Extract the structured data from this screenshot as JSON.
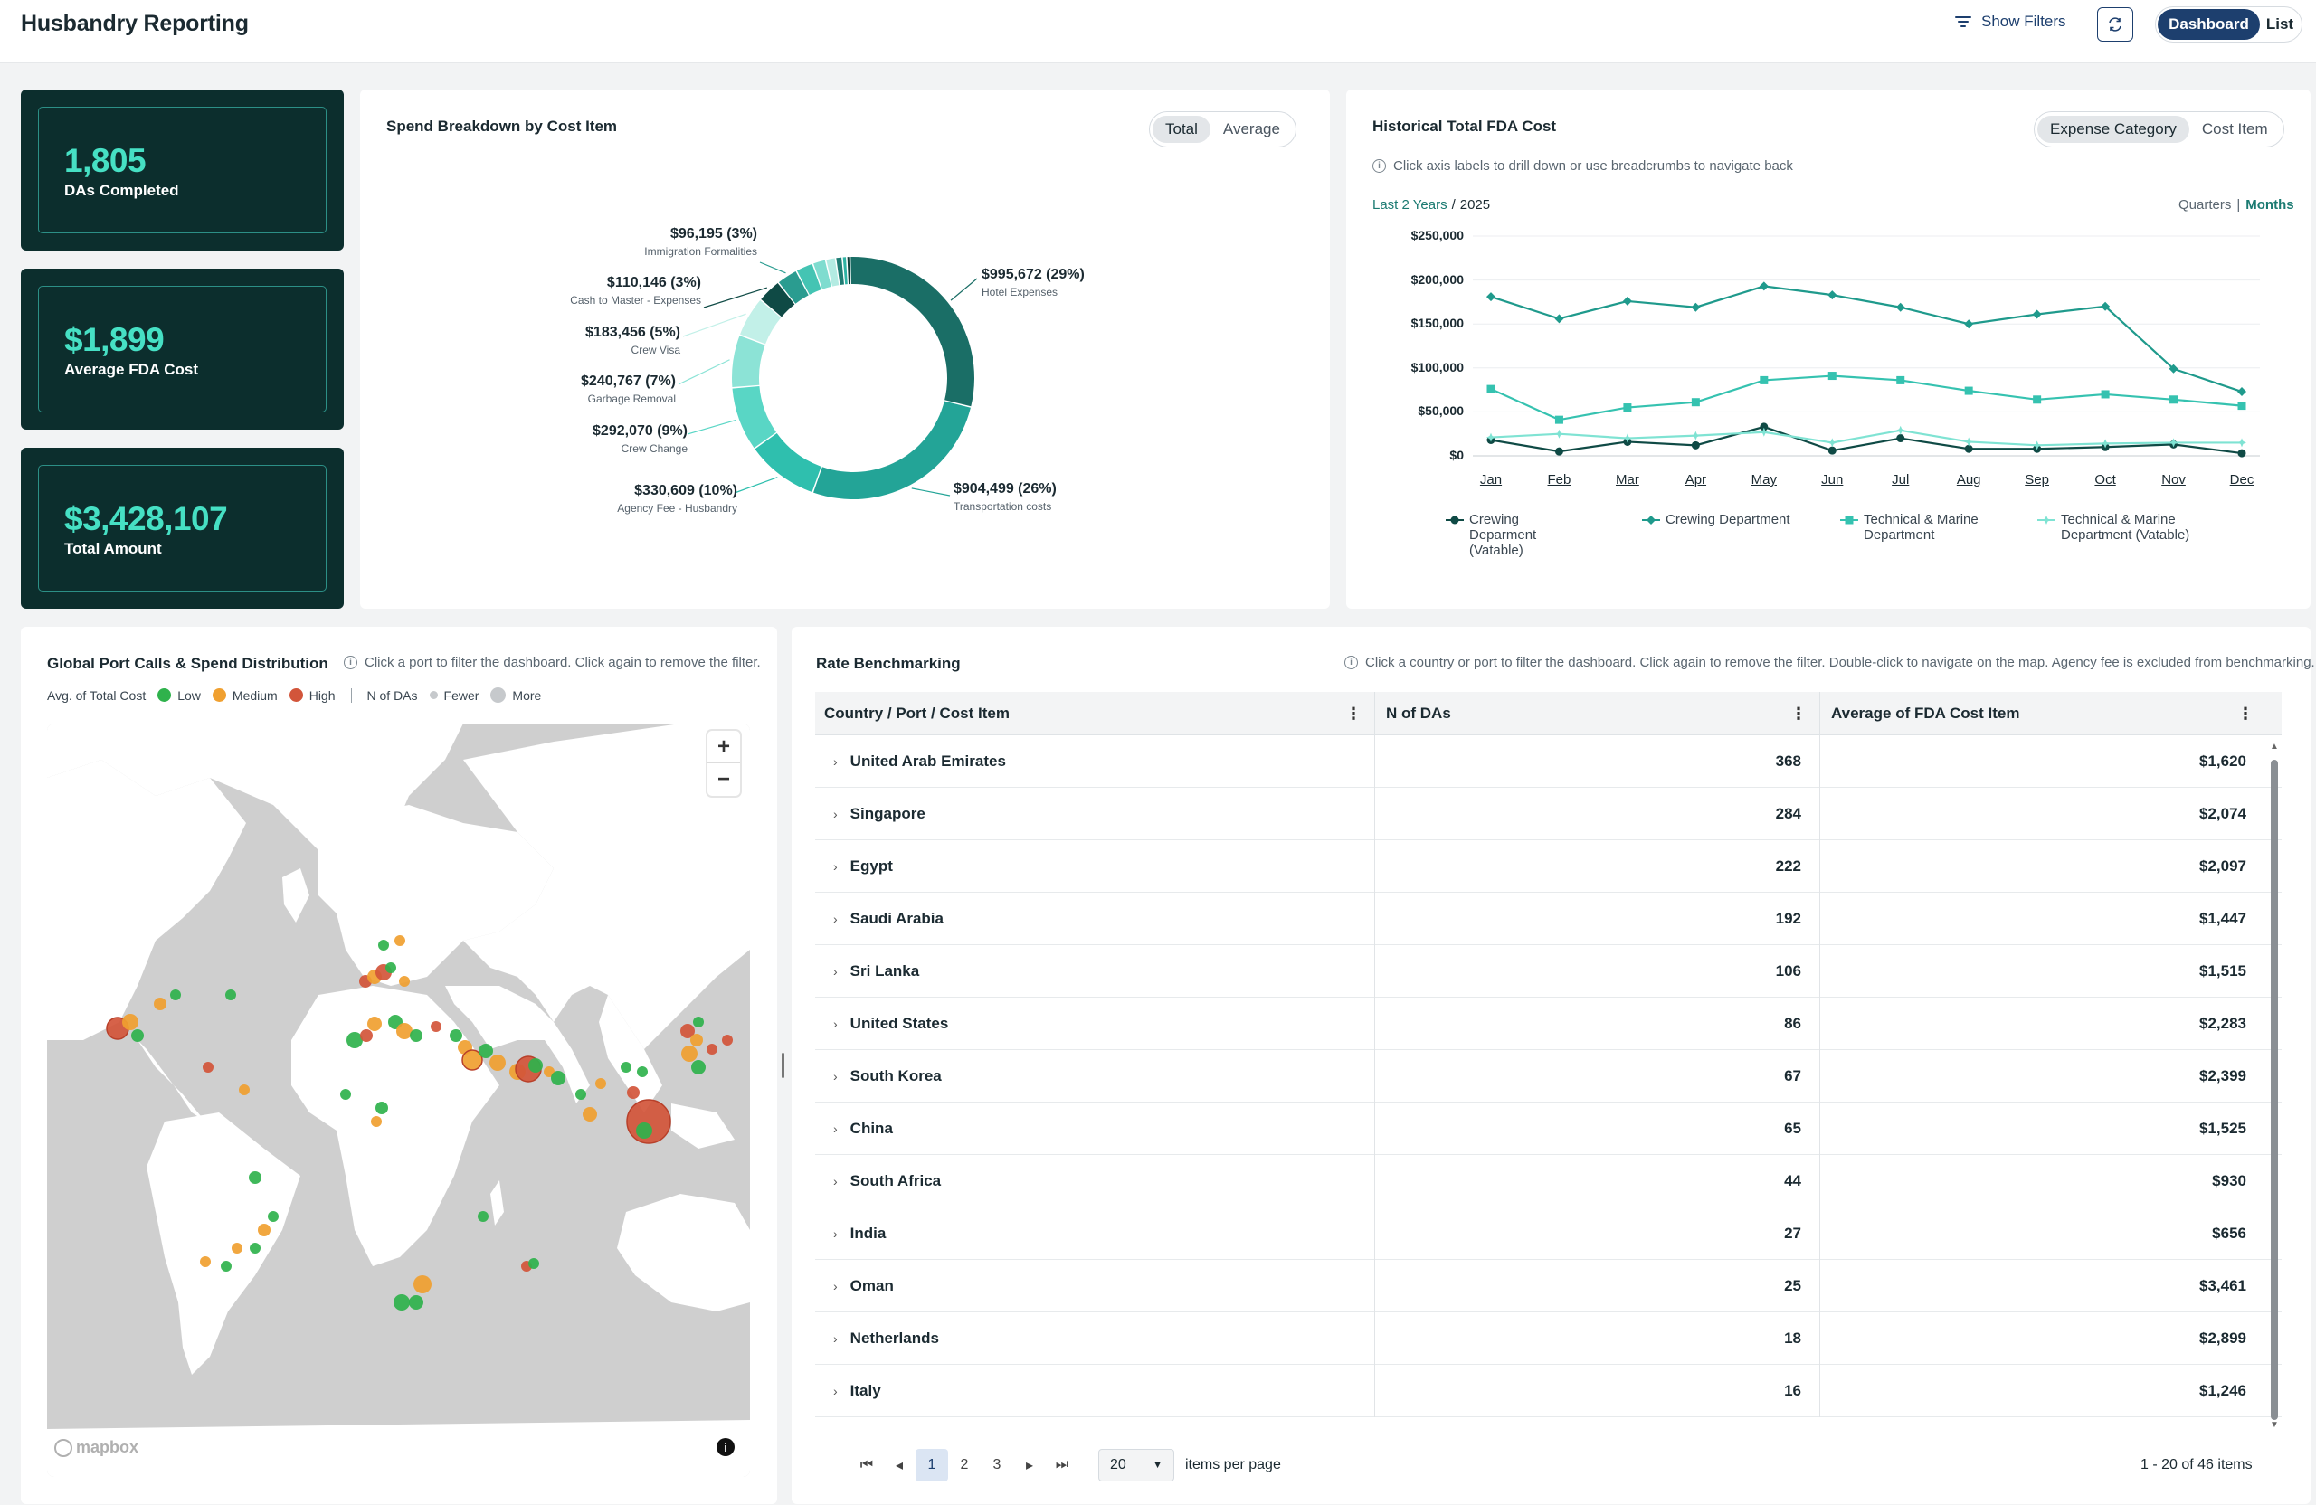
{
  "header": {
    "title": "Husbandry Reporting",
    "show_filters": "Show Filters",
    "view_options": [
      "Dashboard",
      "List"
    ]
  },
  "kpis": [
    {
      "value": "1,805",
      "label": "DAs Completed"
    },
    {
      "value": "$1,899",
      "label": "Average FDA Cost"
    },
    {
      "value": "$3,428,107",
      "label": "Total Amount"
    }
  ],
  "spend": {
    "title": "Spend Breakdown by Cost Item",
    "toggle": [
      "Total",
      "Average"
    ],
    "selected": "Total",
    "chart_data": {
      "type": "pie",
      "donut": true,
      "slices": [
        {
          "label": "Hotel Expenses",
          "value": 995672,
          "value_text": "$995,672 (29%)",
          "color": "#1a6e66"
        },
        {
          "label": "Transportation costs",
          "value": 904499,
          "value_text": "$904,499 (26%)",
          "color": "#23a497"
        },
        {
          "label": "Agency Fee - Husbandry",
          "value": 330609,
          "value_text": "$330,609 (10%)",
          "color": "#2fbfae"
        },
        {
          "label": "Crew Change",
          "value": 292070,
          "value_text": "$292,070 (9%)",
          "color": "#59d6c5"
        },
        {
          "label": "Garbage Removal",
          "value": 240767,
          "value_text": "$240,767 (7%)",
          "color": "#8ce3d6"
        },
        {
          "label": "Crew Visa",
          "value": 183456,
          "value_text": "$183,456 (5%)",
          "color": "#c2f0e8"
        },
        {
          "label": "Cash to Master - Expenses",
          "value": 110146,
          "value_text": "$110,146 (3%)",
          "color": "#0f4a45"
        },
        {
          "label": "Immigration Formalities",
          "value": 96195,
          "value_text": "$96,195 (3%)",
          "color": "#2a9c90"
        },
        {
          "label": "",
          "value": 80000,
          "color": "#44c4b3"
        },
        {
          "label": "",
          "value": 60000,
          "color": "#7fdccf"
        },
        {
          "label": "",
          "value": 45000,
          "color": "#b3ebe2"
        },
        {
          "label": "",
          "value": 30000,
          "color": "#1f7c73"
        },
        {
          "label": "",
          "value": 20000,
          "color": "#2fb3a4"
        },
        {
          "label": "",
          "value": 15000,
          "color": "#0c3b37"
        }
      ]
    }
  },
  "historical": {
    "title": "Historical Total FDA Cost",
    "toggle": [
      "Expense Category",
      "Cost Item"
    ],
    "selected": "Expense Category",
    "info": "Click axis labels to drill down or use breadcrumbs to navigate back",
    "breadcrumb_link": "Last 2 Years",
    "breadcrumb_sep": "/",
    "breadcrumb_current": "2025",
    "granularity_inactive": "Quarters",
    "granularity_sep": "|",
    "granularity_active": "Months",
    "chart_data": {
      "type": "line",
      "categories": [
        "Jan",
        "Feb",
        "Mar",
        "Apr",
        "May",
        "Jun",
        "Jul",
        "Aug",
        "Sep",
        "Oct",
        "Nov",
        "Dec"
      ],
      "ylim": [
        0,
        250000
      ],
      "y_ticks": [
        "$0",
        "$50,000",
        "$100,000",
        "$150,000",
        "$200,000",
        "$250,000"
      ],
      "series": [
        {
          "name": "Crewing Deparment (Vatable)",
          "color": "#0f4a45",
          "marker": "circle",
          "values": [
            18000,
            5000,
            16000,
            12000,
            33000,
            6000,
            20000,
            8000,
            8000,
            10000,
            13000,
            3000
          ]
        },
        {
          "name": "Crewing Department",
          "color": "#1f9a8c",
          "marker": "diamond",
          "values": [
            181000,
            156000,
            176000,
            169000,
            193000,
            183000,
            169000,
            150000,
            161000,
            170000,
            99000,
            73000
          ]
        },
        {
          "name": "Technical & Marine Department",
          "color": "#35c2b0",
          "marker": "square",
          "values": [
            76000,
            41000,
            55000,
            61000,
            86000,
            91000,
            86000,
            74000,
            64000,
            70000,
            64000,
            57000
          ]
        },
        {
          "name": "Technical & Marine Department (Vatable)",
          "color": "#7fe3d3",
          "marker": "star",
          "values": [
            21000,
            25000,
            20000,
            23000,
            27000,
            15000,
            29000,
            16000,
            12000,
            14000,
            15000,
            15000
          ]
        }
      ]
    }
  },
  "map": {
    "title": "Global Port Calls & Spend Distribution",
    "info": "Click a port to filter the dashboard. Click again to remove the filter.",
    "legend_cost_label": "Avg. of Total Cost",
    "legend_low": "Low",
    "legend_medium": "Medium",
    "legend_high": "High",
    "legend_n_label": "N of DAs",
    "legend_fewer": "Fewer",
    "legend_more": "More",
    "colors": {
      "low": "#2fb24c",
      "medium": "#f0a030",
      "high": "#d2553a",
      "water": "#cfcfcf",
      "land": "#ffffff"
    },
    "attribution": "mapbox"
  },
  "rates": {
    "title": "Rate Benchmarking",
    "info": "Click a country or port to filter the dashboard. Click again to remove the filter. Double-click to navigate on the map. Agency fee is excluded from benchmarking.",
    "columns": [
      "Country / Port / Cost Item",
      "N of DAs",
      "Average of FDA Cost Item"
    ],
    "rows": [
      {
        "country": "United Arab Emirates",
        "n": "368",
        "avg": "$1,620"
      },
      {
        "country": "Singapore",
        "n": "284",
        "avg": "$2,074"
      },
      {
        "country": "Egypt",
        "n": "222",
        "avg": "$2,097"
      },
      {
        "country": "Saudi Arabia",
        "n": "192",
        "avg": "$1,447"
      },
      {
        "country": "Sri Lanka",
        "n": "106",
        "avg": "$1,515"
      },
      {
        "country": "United States",
        "n": "86",
        "avg": "$2,283"
      },
      {
        "country": "South Korea",
        "n": "67",
        "avg": "$2,399"
      },
      {
        "country": "China",
        "n": "65",
        "avg": "$1,525"
      },
      {
        "country": "South Africa",
        "n": "44",
        "avg": "$930"
      },
      {
        "country": "India",
        "n": "27",
        "avg": "$656"
      },
      {
        "country": "Oman",
        "n": "25",
        "avg": "$3,461"
      },
      {
        "country": "Netherlands",
        "n": "18",
        "avg": "$2,899"
      },
      {
        "country": "Italy",
        "n": "16",
        "avg": "$1,246"
      }
    ],
    "pager": {
      "pages": [
        "1",
        "2",
        "3"
      ],
      "current": "1",
      "per_page": "20",
      "per_page_label": "items per page",
      "summary": "1 - 20 of 46 items"
    }
  }
}
